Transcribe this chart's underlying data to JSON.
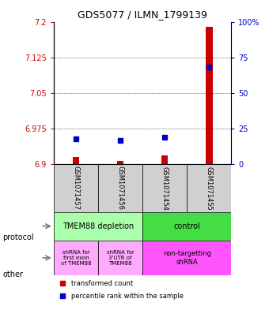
{
  "title": "GDS5077 / ILMN_1799139",
  "samples": [
    "GSM1071457",
    "GSM1071456",
    "GSM1071454",
    "GSM1071455"
  ],
  "transformed_counts": [
    6.915,
    6.908,
    6.918,
    7.19
  ],
  "percentile_ranks": [
    18,
    17,
    19,
    68
  ],
  "ylim_left": [
    6.9,
    7.2
  ],
  "ylim_right": [
    0,
    100
  ],
  "yticks_left": [
    6.9,
    6.975,
    7.05,
    7.125,
    7.2
  ],
  "yticks_right": [
    0,
    25,
    50,
    75,
    100
  ],
  "ytick_labels_left": [
    "6.9",
    "6.975",
    "7.05",
    "7.125",
    "7.2"
  ],
  "ytick_labels_right": [
    "0",
    "25",
    "50",
    "75",
    "100%"
  ],
  "bar_color": "#cc0000",
  "dot_color": "#0000cc",
  "protocol_labels": [
    "TMEM88 depletion",
    "control"
  ],
  "protocol_colors": [
    "#aaffaa",
    "#55dd55"
  ],
  "other_labels": [
    "shRNA for\nfirst exon\nof TMEM88",
    "shRNA for\n3'UTR of\nTMEM88",
    "non-targetting\nshRNA"
  ],
  "other_colors": [
    "#ffaaff",
    "#ffaaff",
    "#ff55ff"
  ],
  "legend_bar_color": "#cc0000",
  "legend_dot_color": "#0000cc",
  "background_color": "#ffffff",
  "plot_bg_color": "#ffffff",
  "grid_color": "#000000",
  "left_axis_color": "#cc0000",
  "right_axis_color": "#0000cc"
}
